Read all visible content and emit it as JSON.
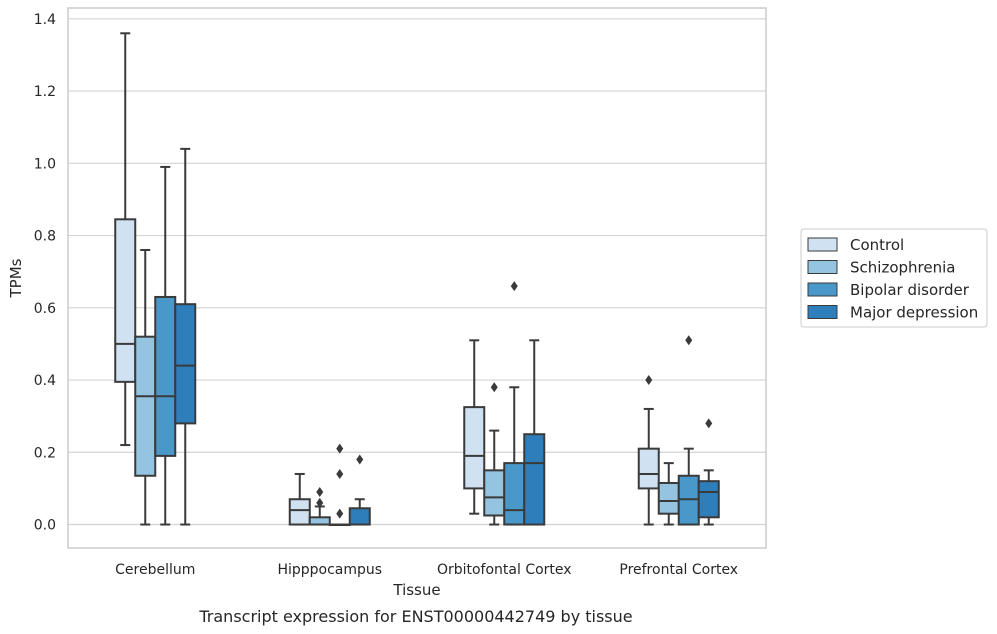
{
  "chart_data": {
    "type": "box",
    "xlabel": "Tissue",
    "ylabel": "TPMs",
    "caption": "Transcript expression for ENST00000442749 by tissue",
    "ylim": [
      -0.065,
      1.43
    ],
    "yticks": [
      0.0,
      0.2,
      0.4,
      0.6,
      0.8,
      1.0,
      1.2,
      1.4
    ],
    "ytick_labels": [
      "0.0",
      "0.2",
      "0.4",
      "0.6",
      "0.8",
      "1.0",
      "1.2",
      "1.4"
    ],
    "grid": "horizontal",
    "legend_position": "right",
    "categories": [
      "Cerebellum",
      "Hipppocampus",
      "Orbitofontal Cortex",
      "Prefrontal Cortex"
    ],
    "series": [
      {
        "name": "Control",
        "color": "#d0e1f2",
        "boxes": [
          {
            "whislo": 0.22,
            "q1": 0.395,
            "med": 0.5,
            "q3": 0.845,
            "whishi": 1.36,
            "fliers": []
          },
          {
            "whislo": 0.0,
            "q1": 0.0,
            "med": 0.04,
            "q3": 0.07,
            "whishi": 0.14,
            "fliers": []
          },
          {
            "whislo": 0.03,
            "q1": 0.1,
            "med": 0.19,
            "q3": 0.325,
            "whishi": 0.51,
            "fliers": []
          },
          {
            "whislo": 0.0,
            "q1": 0.1,
            "med": 0.14,
            "q3": 0.21,
            "whishi": 0.32,
            "fliers": [
              0.4
            ]
          }
        ]
      },
      {
        "name": "Schizophrenia",
        "color": "#94c4df",
        "boxes": [
          {
            "whislo": 0.0,
            "q1": 0.135,
            "med": 0.355,
            "q3": 0.52,
            "whishi": 0.76,
            "fliers": []
          },
          {
            "whislo": 0.0,
            "q1": 0.0,
            "med": 0.0,
            "q3": 0.02,
            "whishi": 0.05,
            "fliers": [
              0.06,
              0.09
            ]
          },
          {
            "whislo": 0.0,
            "q1": 0.025,
            "med": 0.075,
            "q3": 0.15,
            "whishi": 0.26,
            "fliers": [
              0.38
            ]
          },
          {
            "whislo": 0.0,
            "q1": 0.03,
            "med": 0.065,
            "q3": 0.115,
            "whishi": 0.17,
            "fliers": []
          }
        ]
      },
      {
        "name": "Bipolar disorder",
        "color": "#4a98c9",
        "boxes": [
          {
            "whislo": 0.0,
            "q1": 0.19,
            "med": 0.355,
            "q3": 0.63,
            "whishi": 0.99,
            "fliers": []
          },
          {
            "whislo": 0.0,
            "q1": 0.0,
            "med": 0.0,
            "q3": 0.0,
            "whishi": 0.0,
            "fliers": [
              0.03,
              0.14,
              0.21
            ]
          },
          {
            "whislo": 0.0,
            "q1": 0.0,
            "med": 0.04,
            "q3": 0.17,
            "whishi": 0.38,
            "fliers": [
              0.66
            ]
          },
          {
            "whislo": 0.0,
            "q1": 0.0,
            "med": 0.07,
            "q3": 0.135,
            "whishi": 0.21,
            "fliers": [
              0.51
            ]
          }
        ]
      },
      {
        "name": "Major depression",
        "color": "#2e7ebc",
        "boxes": [
          {
            "whislo": 0.0,
            "q1": 0.28,
            "med": 0.44,
            "q3": 0.61,
            "whishi": 1.04,
            "fliers": []
          },
          {
            "whislo": 0.0,
            "q1": 0.0,
            "med": 0.0,
            "q3": 0.045,
            "whishi": 0.07,
            "fliers": [
              0.18
            ]
          },
          {
            "whislo": 0.0,
            "q1": 0.0,
            "med": 0.17,
            "q3": 0.25,
            "whishi": 0.51,
            "fliers": []
          },
          {
            "whislo": 0.0,
            "q1": 0.02,
            "med": 0.09,
            "q3": 0.12,
            "whishi": 0.15,
            "fliers": [
              0.28
            ]
          }
        ]
      }
    ]
  },
  "colors": {
    "grid": "#d3d3d3",
    "frame": "#cccccc",
    "line": "#3a3a3a"
  }
}
